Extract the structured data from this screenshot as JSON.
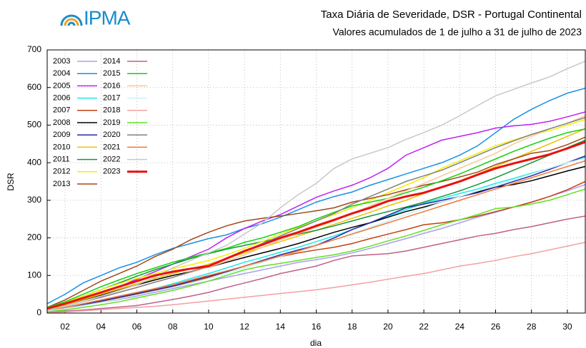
{
  "logo": "IPMA",
  "chart_data": {
    "type": "line",
    "title": "Taxa Diária de Severidade, DSR - Portugal Continental",
    "subtitle": "Valores acumulados de  1 de julho a 31 de julho de 2023",
    "xlabel": "dia",
    "ylabel": "DSR",
    "x": [
      1,
      2,
      3,
      4,
      5,
      6,
      7,
      8,
      9,
      10,
      11,
      12,
      13,
      14,
      15,
      16,
      17,
      18,
      19,
      20,
      21,
      22,
      23,
      24,
      25,
      26,
      27,
      28,
      29,
      30,
      31
    ],
    "xlim": [
      1,
      31
    ],
    "xticks": [
      {
        "value": 2,
        "label": "02"
      },
      {
        "value": 4,
        "label": "04"
      },
      {
        "value": 6,
        "label": "06"
      },
      {
        "value": 8,
        "label": "08"
      },
      10,
      12,
      14,
      16,
      18,
      20,
      22,
      24,
      26,
      28,
      30
    ],
    "ylim": [
      0,
      700
    ],
    "yticks": [
      0,
      100,
      200,
      300,
      400,
      500,
      600,
      700
    ],
    "grid": true,
    "legend": "upper-left",
    "series": [
      {
        "name": "2003",
        "color": "#a8a0f0",
        "values": [
          5,
          12,
          20,
          28,
          36,
          45,
          55,
          65,
          75,
          85,
          95,
          105,
          115,
          125,
          135,
          142,
          150,
          160,
          172,
          185,
          198,
          212,
          225,
          240,
          255,
          268,
          282,
          295,
          310,
          325,
          342
        ]
      },
      {
        "name": "2004",
        "color": "#1890e8",
        "values": [
          25,
          50,
          80,
          100,
          120,
          135,
          155,
          172,
          185,
          198,
          208,
          225,
          238,
          255,
          275,
          295,
          310,
          322,
          340,
          355,
          370,
          385,
          400,
          420,
          445,
          480,
          515,
          542,
          565,
          585,
          598
        ]
      },
      {
        "name": "2005",
        "color": "#c020f0",
        "values": [
          10,
          25,
          40,
          55,
          70,
          90,
          110,
          130,
          150,
          170,
          200,
          225,
          245,
          262,
          285,
          308,
          325,
          340,
          360,
          385,
          420,
          440,
          460,
          470,
          480,
          492,
          498,
          502,
          510,
          522,
          535
        ]
      },
      {
        "name": "2006",
        "color": "#20e8e8",
        "values": [
          5,
          12,
          20,
          30,
          40,
          52,
          65,
          78,
          92,
          105,
          120,
          135,
          148,
          162,
          175,
          190,
          205,
          222,
          240,
          258,
          275,
          292,
          305,
          318,
          330,
          345,
          358,
          372,
          385,
          400,
          415
        ]
      },
      {
        "name": "2007",
        "color": "#c84010",
        "values": [
          5,
          12,
          20,
          30,
          40,
          50,
          60,
          70,
          82,
          95,
          110,
          125,
          138,
          150,
          160,
          168,
          175,
          185,
          198,
          210,
          222,
          235,
          240,
          248,
          258,
          270,
          282,
          295,
          310,
          328,
          350
        ]
      },
      {
        "name": "2008",
        "color": "#000000",
        "values": [
          10,
          22,
          35,
          48,
          62,
          75,
          88,
          100,
          110,
          122,
          135,
          148,
          160,
          172,
          185,
          200,
          215,
          228,
          240,
          255,
          270,
          282,
          295,
          310,
          322,
          335,
          342,
          352,
          365,
          378,
          390
        ]
      },
      {
        "name": "2009",
        "color": "#2828a8",
        "values": [
          5,
          12,
          22,
          32,
          42,
          52,
          62,
          72,
          85,
          98,
          110,
          125,
          140,
          155,
          168,
          180,
          200,
          222,
          240,
          260,
          280,
          290,
          300,
          310,
          320,
          335,
          350,
          365,
          382,
          400,
          418
        ]
      },
      {
        "name": "2010",
        "color": "#f0c000",
        "values": [
          10,
          22,
          36,
          50,
          64,
          78,
          92,
          105,
          118,
          130,
          145,
          160,
          175,
          190,
          205,
          220,
          236,
          252,
          268,
          285,
          300,
          318,
          335,
          352,
          370,
          390,
          410,
          430,
          450,
          470,
          490
        ]
      },
      {
        "name": "2011",
        "color": "#109838",
        "values": [
          12,
          28,
          45,
          62,
          80,
          98,
          115,
          130,
          145,
          158,
          170,
          180,
          190,
          200,
          210,
          220,
          232,
          245,
          258,
          270,
          282,
          295,
          310,
          325,
          342,
          360,
          380,
          400,
          420,
          440,
          460
        ]
      },
      {
        "name": "2012",
        "color": "#f0f000",
        "values": [
          12,
          28,
          45,
          62,
          78,
          92,
          105,
          118,
          128,
          140,
          155,
          172,
          190,
          210,
          228,
          245,
          262,
          280,
          300,
          320,
          340,
          360,
          385,
          405,
          425,
          445,
          460,
          475,
          485,
          500,
          515
        ]
      },
      {
        "name": "2013",
        "color": "#a04818",
        "values": [
          15,
          35,
          60,
          85,
          105,
          125,
          150,
          170,
          195,
          215,
          232,
          245,
          252,
          258,
          265,
          272,
          280,
          295,
          305,
          315,
          328,
          340,
          350,
          362,
          375,
          395,
          410,
          425,
          432,
          448,
          468
        ]
      },
      {
        "name": "2014",
        "color": "#c06088",
        "values": [
          2,
          5,
          8,
          12,
          16,
          20,
          28,
          36,
          45,
          55,
          68,
          80,
          92,
          105,
          115,
          125,
          140,
          152,
          155,
          158,
          165,
          175,
          185,
          195,
          205,
          212,
          222,
          230,
          240,
          250,
          258
        ]
      },
      {
        "name": "2015",
        "color": "#10d010",
        "values": [
          15,
          30,
          50,
          70,
          88,
          105,
          120,
          135,
          148,
          160,
          172,
          188,
          200,
          215,
          230,
          250,
          268,
          285,
          295,
          305,
          320,
          335,
          352,
          370,
          390,
          410,
          430,
          448,
          465,
          480,
          490
        ]
      },
      {
        "name": "2016",
        "color": "#f8c898",
        "values": [
          8,
          18,
          30,
          42,
          55,
          68,
          82,
          95,
          108,
          122,
          138,
          155,
          175,
          195,
          212,
          228,
          245,
          265,
          285,
          305,
          325,
          345,
          365,
          385,
          405,
          425,
          450,
          470,
          490,
          505,
          525
        ]
      },
      {
        "name": "2017",
        "color": "#c8f4f4",
        "values": [
          5,
          12,
          20,
          28,
          38,
          48,
          58,
          68,
          80,
          92,
          105,
          120,
          135,
          150,
          165,
          180,
          195,
          212,
          228,
          245,
          262,
          278,
          295,
          310,
          325,
          340,
          355,
          370,
          385,
          400,
          412
        ]
      },
      {
        "name": "2018",
        "color": "#f4a0a0",
        "values": [
          1,
          3,
          6,
          9,
          12,
          15,
          18,
          22,
          27,
          32,
          37,
          42,
          47,
          52,
          57,
          62,
          68,
          75,
          82,
          90,
          98,
          105,
          115,
          125,
          132,
          140,
          150,
          158,
          168,
          178,
          188
        ]
      },
      {
        "name": "2019",
        "color": "#60e020",
        "values": [
          3,
          8,
          15,
          22,
          30,
          40,
          50,
          60,
          72,
          85,
          100,
          115,
          125,
          132,
          140,
          148,
          155,
          165,
          178,
          192,
          205,
          220,
          235,
          248,
          262,
          278,
          282,
          290,
          300,
          315,
          330
        ]
      },
      {
        "name": "2020",
        "color": "#808080",
        "values": [
          8,
          18,
          30,
          42,
          55,
          68,
          82,
          95,
          110,
          125,
          145,
          165,
          185,
          205,
          225,
          245,
          265,
          290,
          310,
          330,
          350,
          365,
          380,
          400,
          420,
          440,
          458,
          475,
          490,
          505,
          520
        ]
      },
      {
        "name": "2021",
        "color": "#f07838",
        "values": [
          8,
          15,
          25,
          35,
          45,
          55,
          65,
          75,
          88,
          100,
          112,
          125,
          138,
          152,
          165,
          180,
          195,
          210,
          225,
          240,
          255,
          270,
          285,
          300,
          315,
          330,
          345,
          360,
          375,
          390,
          405
        ]
      },
      {
        "name": "2022",
        "color": "#c8c8c8",
        "values": [
          8,
          18,
          30,
          45,
          60,
          75,
          95,
          120,
          140,
          160,
          180,
          210,
          240,
          280,
          315,
          345,
          385,
          410,
          425,
          440,
          462,
          480,
          500,
          525,
          552,
          578,
          595,
          612,
          628,
          650,
          670
        ]
      },
      {
        "name": "2023",
        "color": "#e81010",
        "values": [
          12,
          25,
          40,
          55,
          70,
          85,
          100,
          110,
          118,
          125,
          145,
          165,
          182,
          200,
          215,
          232,
          248,
          265,
          280,
          298,
          310,
          320,
          335,
          350,
          368,
          385,
          398,
          410,
          422,
          438,
          455
        ]
      }
    ]
  }
}
